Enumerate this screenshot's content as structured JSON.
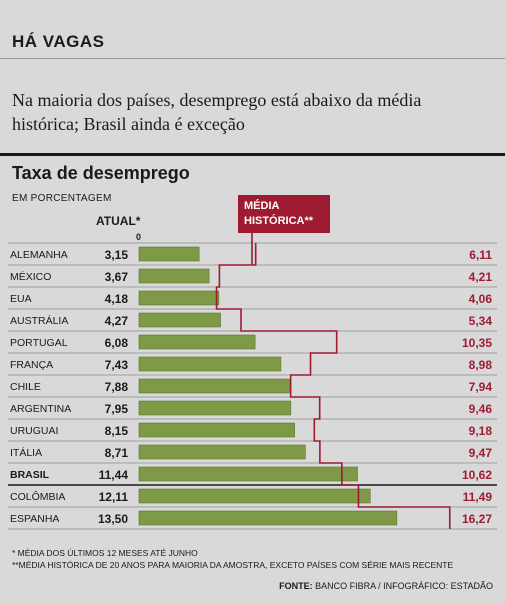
{
  "kicker": "HÁ VAGAS",
  "lead": "Na maioria dos países, desemprego está abaixo da média histórica; Brasil ainda é exceção",
  "chart_data": {
    "type": "bar",
    "title": "Taxa de desemprego",
    "subtitle": "EM PORCENTAGEM",
    "actual_label": "ATUAL*",
    "historic_label": "MÉDIA HISTÓRICA**",
    "zero_label": "0",
    "categories": [
      "ALEMANHA",
      "MÉXICO",
      "EUA",
      "AUSTRÁLIA",
      "PORTUGAL",
      "FRANÇA",
      "CHILE",
      "ARGENTINA",
      "URUGUAI",
      "ITÁLIA",
      "BRASIL",
      "COLÔMBIA",
      "ESPANHA"
    ],
    "highlight": "BRASIL",
    "series": [
      {
        "name": "ATUAL*",
        "values": [
          3.15,
          3.67,
          4.18,
          4.27,
          6.08,
          7.43,
          7.88,
          7.95,
          8.15,
          8.71,
          11.44,
          12.11,
          13.5
        ],
        "labels": [
          "3,15",
          "3,67",
          "4,18",
          "4,27",
          "6,08",
          "7,43",
          "7,88",
          "7,95",
          "8,15",
          "8,71",
          "11,44",
          "12,11",
          "13,50"
        ]
      },
      {
        "name": "MÉDIA HISTÓRICA**",
        "values": [
          6.11,
          4.21,
          4.06,
          5.34,
          10.35,
          8.98,
          7.94,
          9.46,
          9.18,
          9.47,
          10.62,
          11.49,
          16.27
        ],
        "labels": [
          "6,11",
          "4,21",
          "4,06",
          "5,34",
          "10,35",
          "8,98",
          "7,94",
          "9,46",
          "9,18",
          "9,47",
          "10,62",
          "11,49",
          "16,27"
        ]
      }
    ],
    "colors": {
      "bar": "#7e9a46",
      "bar_border": "#5e7630",
      "historic": "#9e1b32"
    }
  },
  "footnotes": [
    "* MÉDIA DOS ÚLTIMOS 12 MESES ATÉ JUNHO",
    "**MÉDIA HISTÓRICA DE 20 ANOS PARA MAIORIA DA AMOSTRA, EXCETO PAÍSES COM SÉRIE MAIS RECENTE"
  ],
  "source": {
    "label": "FONTE:",
    "text": "BANCO FIBRA / INFOGRÁFICO: ESTADÃO"
  }
}
